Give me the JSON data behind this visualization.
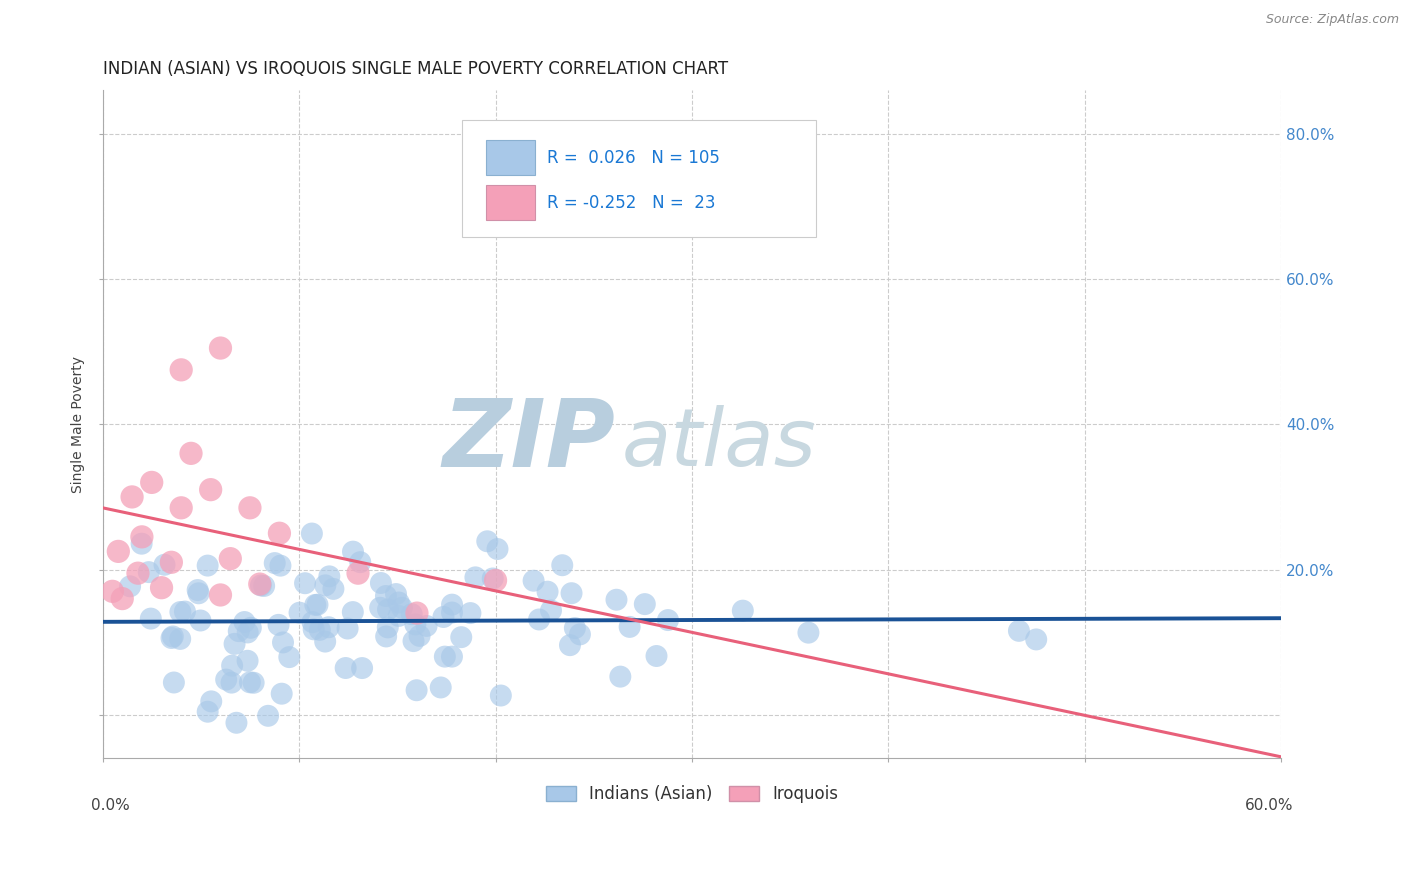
{
  "title": "INDIAN (ASIAN) VS IROQUOIS SINGLE MALE POVERTY CORRELATION CHART",
  "source_text": "Source: ZipAtlas.com",
  "ylabel": "Single Male Poverty",
  "xlim": [
    0.0,
    0.6
  ],
  "ylim": [
    -0.06,
    0.86
  ],
  "yticks": [
    0.0,
    0.2,
    0.4,
    0.6,
    0.8
  ],
  "indian_R": 0.026,
  "indian_N": 105,
  "iroquois_R": -0.252,
  "iroquois_N": 23,
  "indian_color": "#a8c8e8",
  "iroquois_color": "#f4a0b8",
  "indian_line_color": "#1a5296",
  "iroquois_line_color": "#e8607a",
  "background_color": "#ffffff",
  "watermark_zip_color": "#c8d8e8",
  "watermark_atlas_color": "#d0dce8",
  "legend_text_color": "#1a78d4",
  "title_color": "#222222",
  "title_fontsize": 12,
  "axis_label_fontsize": 10,
  "tick_fontsize": 11,
  "legend_fontsize": 12,
  "right_tick_color": "#4488cc",
  "source_color": "#888888"
}
